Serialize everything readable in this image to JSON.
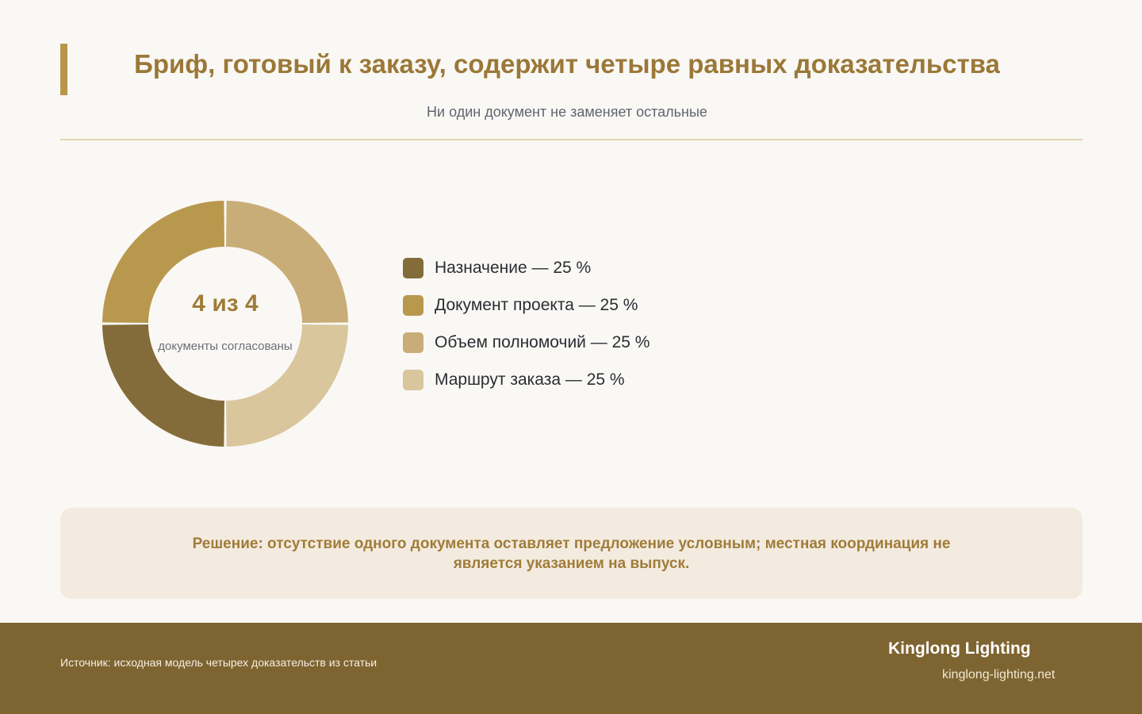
{
  "header": {
    "title": "Бриф, готовый к заказу, содержит четыре равных доказательства",
    "subtitle": "Ни один документ не заменяет остальные"
  },
  "chart_data": {
    "type": "pie",
    "title": "Бриф, готовый к заказу, содержит четыре равных доказательства",
    "subtitle": "Ни один документ не заменяет остальные",
    "center_value": "4 из 4",
    "center_caption": "документы согласованы",
    "legend_position": "right",
    "slices": [
      {
        "label": "Назначение",
        "value": 25,
        "color": "#846c3a"
      },
      {
        "label": "Документ проекта",
        "value": 25,
        "color": "#b8984d"
      },
      {
        "label": "Объем полномочий",
        "value": 25,
        "color": "#c9ad78"
      },
      {
        "label": "Маршрут заказа",
        "value": 25,
        "color": "#d9c69d"
      }
    ]
  },
  "legend": [
    {
      "text": "Назначение — 25 %"
    },
    {
      "text": "Документ проекта — 25 %"
    },
    {
      "text": "Объем полномочий — 25 %"
    },
    {
      "text": "Маршрут заказа — 25 %"
    }
  ],
  "callout": {
    "text": "Решение: отсутствие одного документа оставляет предложение условным; местная координация не является указанием на выпуск."
  },
  "footer": {
    "source": "Источник: исходная модель четырех доказательств из статьи",
    "brand": "Kinglong Lighting",
    "url": "kinglong-lighting.net"
  },
  "colors": {
    "accent": "#b89549",
    "title": "#9b7838",
    "footer_bg": "#7e6431",
    "callout_bg": "#f3ebdf",
    "page_bg": "#faf8f4"
  }
}
